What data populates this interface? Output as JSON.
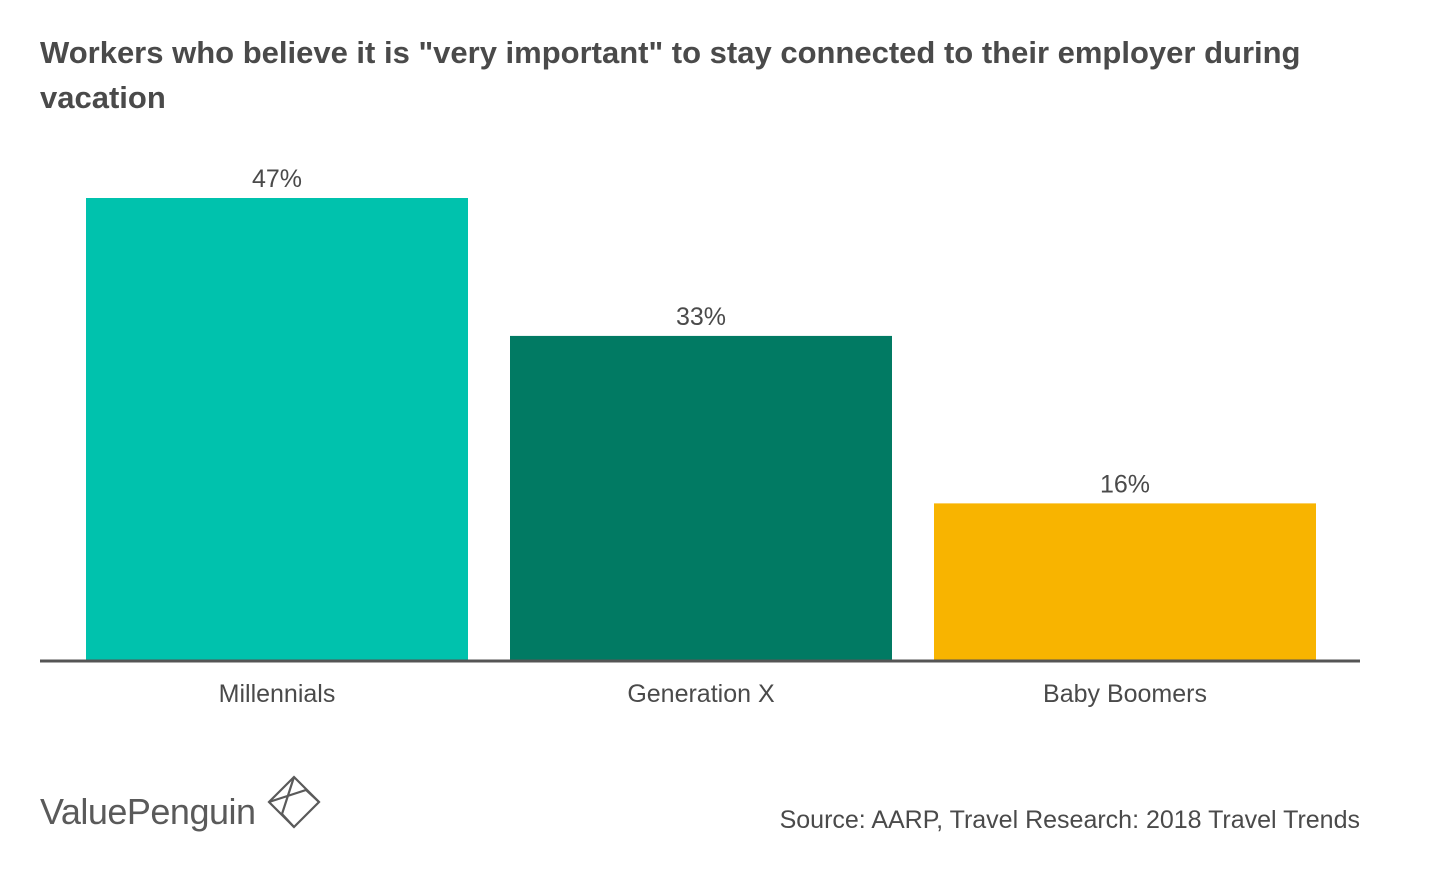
{
  "title": "Workers who believe it is \"very important\" to stay connected to their employer during vacation",
  "source": "Source: AARP, Travel Research: 2018 Travel Trends",
  "logo": {
    "text": "ValuePenguin",
    "icon": "valuepenguin-diamond-icon"
  },
  "chart_data": {
    "type": "bar",
    "title": "Workers who believe it is \"very important\" to stay connected to their employer during vacation",
    "categories": [
      "Millennials",
      "Generation X",
      "Baby Boomers"
    ],
    "values": [
      47,
      33,
      16
    ],
    "value_labels": [
      "47%",
      "33%",
      "16%"
    ],
    "colors": [
      "#00c2ad",
      "#017a63",
      "#f8b400"
    ],
    "xlabel": "",
    "ylabel": "",
    "ylim": [
      0,
      47
    ],
    "grid": false,
    "legend": "none"
  }
}
